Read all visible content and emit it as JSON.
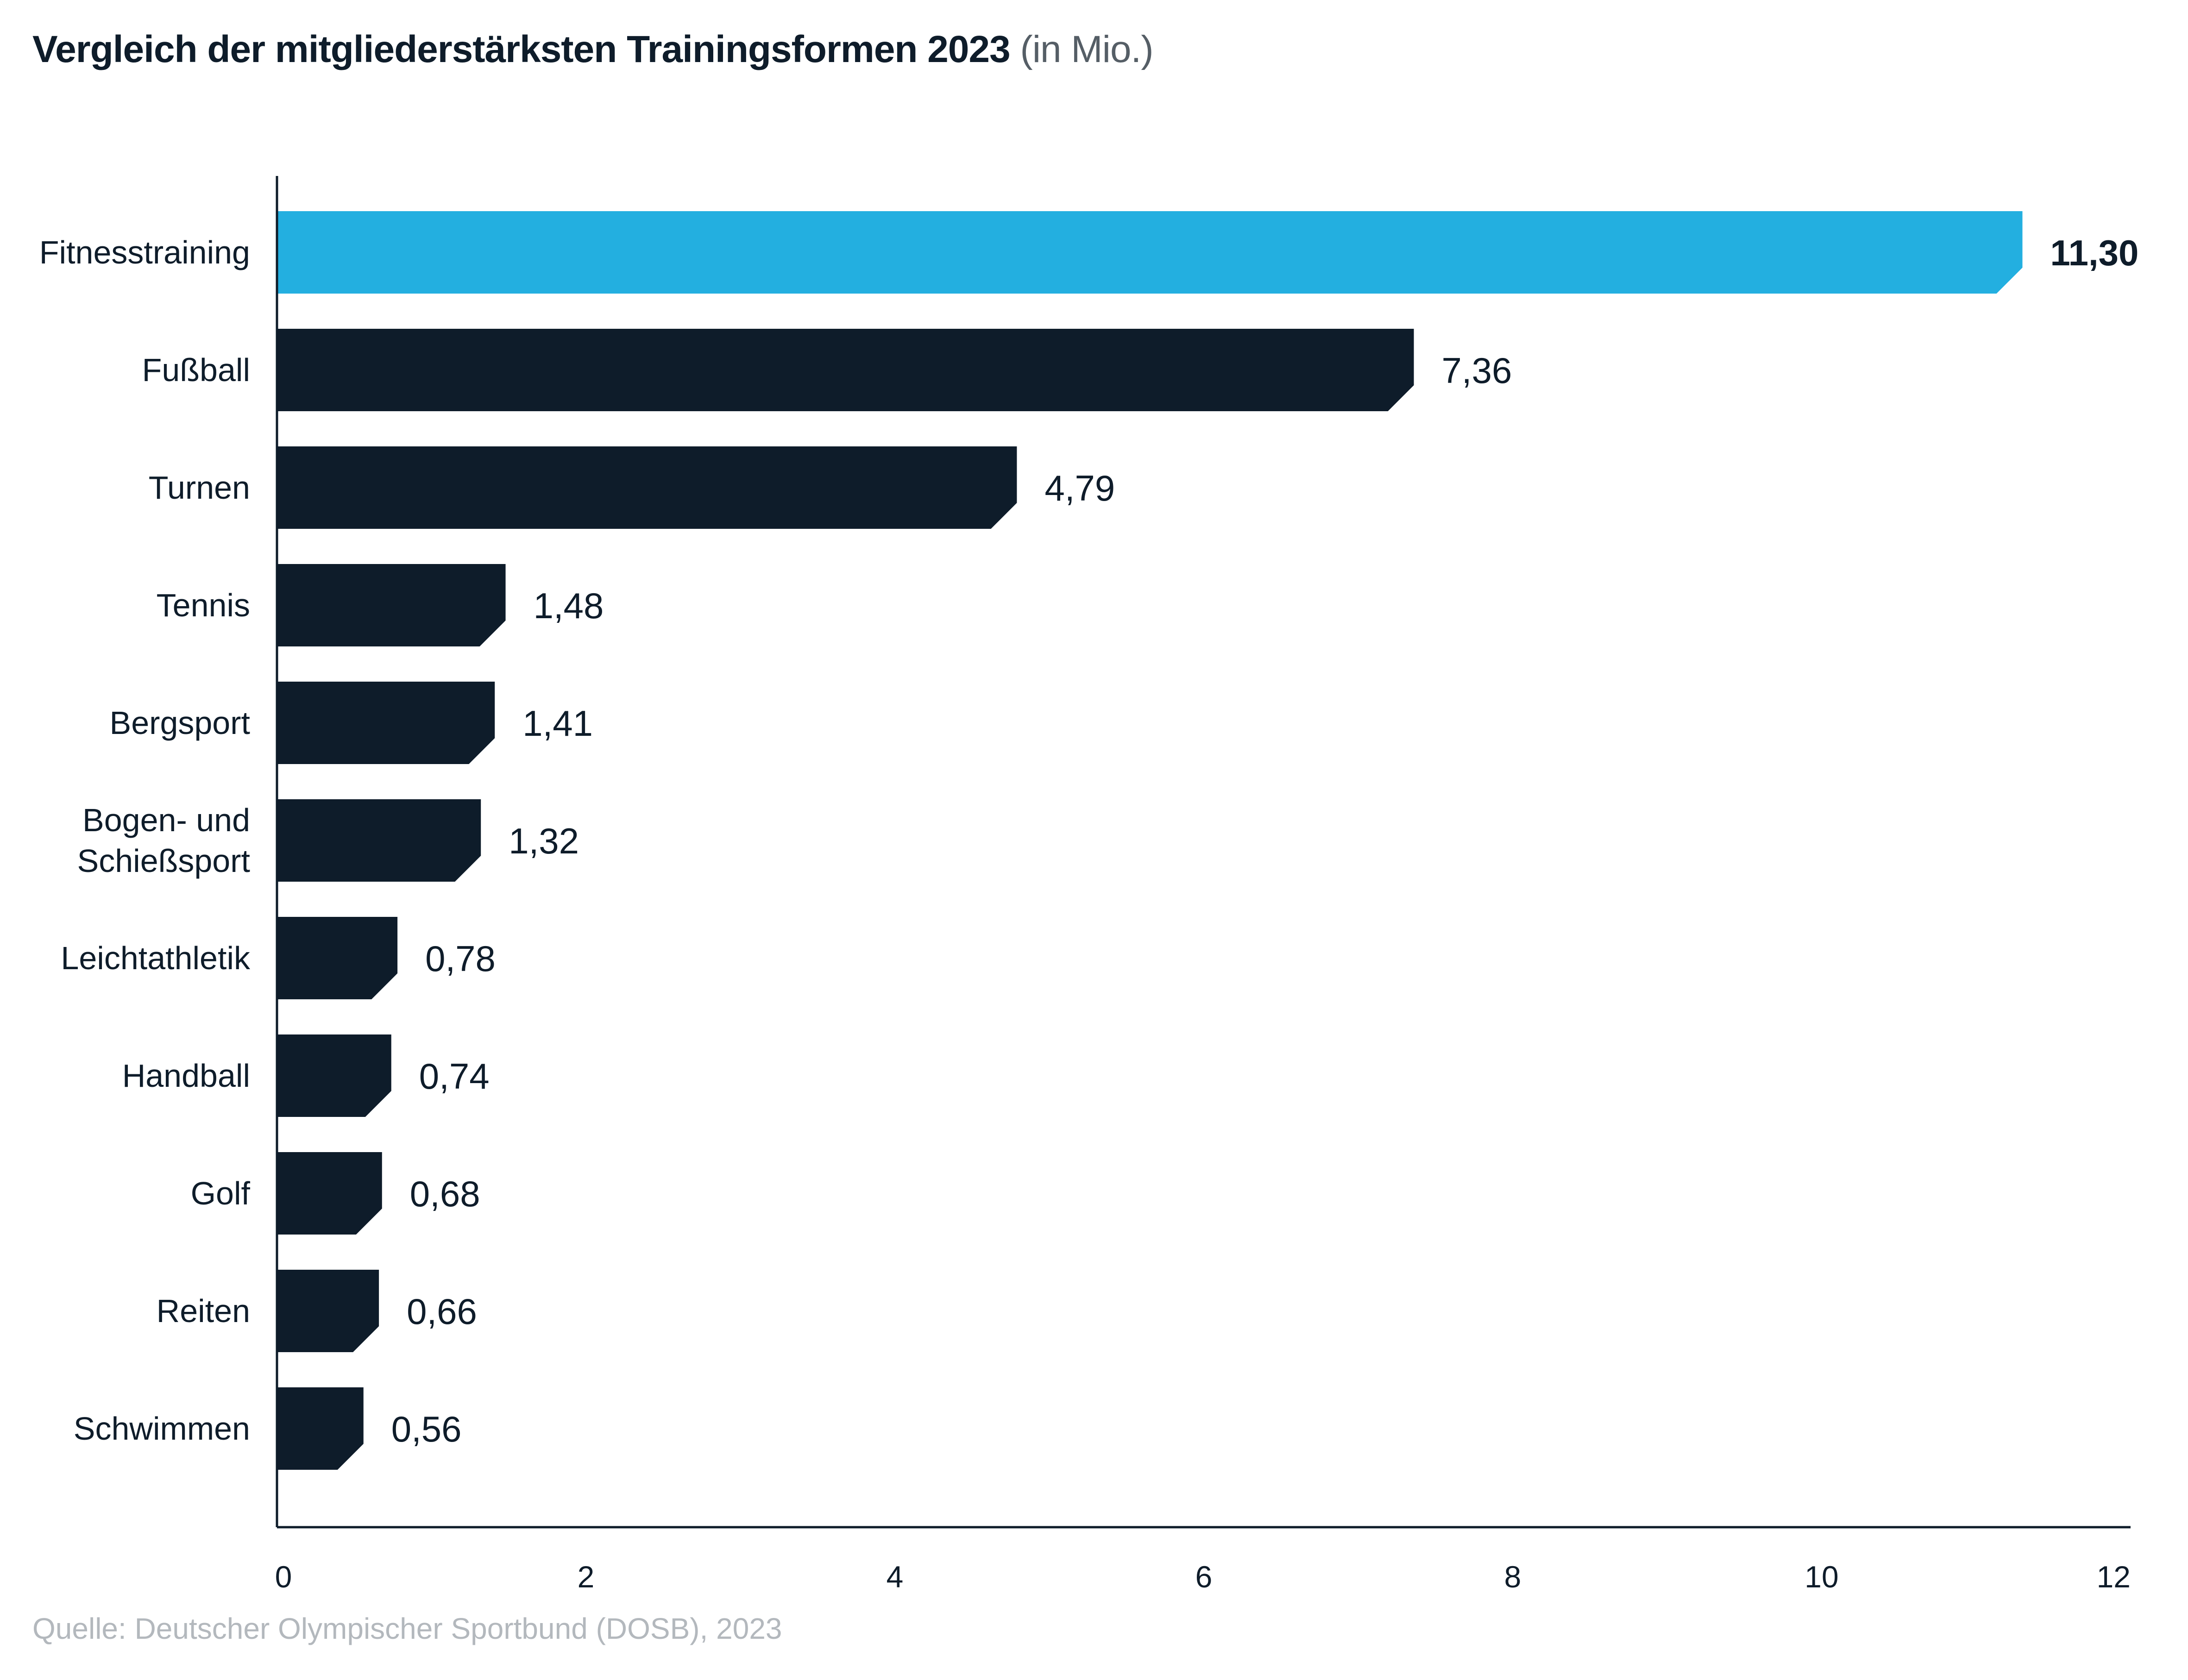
{
  "chart_data": {
    "type": "bar",
    "orientation": "horizontal",
    "title": "Vergleich der mitgliederstärksten Trainingsformen 2023",
    "unit": "(in Mio.)",
    "categories": [
      "Fitnesstraining",
      "Fußball",
      "Turnen",
      "Tennis",
      "Bergsport",
      "Bogen- und Schießsport",
      "Leichtathletik",
      "Handball",
      "Golf",
      "Reiten",
      "Schwimmen"
    ],
    "category_lines": [
      [
        "Fitnesstraining"
      ],
      [
        "Fußball"
      ],
      [
        "Turnen"
      ],
      [
        "Tennis"
      ],
      [
        "Bergsport"
      ],
      [
        "Bogen- und",
        "Schießsport"
      ],
      [
        "Leichtathletik"
      ],
      [
        "Handball"
      ],
      [
        "Golf"
      ],
      [
        "Reiten"
      ],
      [
        "Schwimmen"
      ]
    ],
    "values": [
      11.3,
      7.36,
      4.79,
      1.48,
      1.41,
      1.32,
      0.78,
      0.74,
      0.68,
      0.66,
      0.56
    ],
    "value_labels": [
      "11,30",
      "7,36",
      "4,79",
      "1,48",
      "1,41",
      "1,32",
      "0,78",
      "0,74",
      "0,68",
      "0,66",
      "0,56"
    ],
    "highlight_index": 0,
    "xlim": [
      0,
      12
    ],
    "xticks": [
      0,
      2,
      4,
      6,
      8,
      10,
      12
    ],
    "xtick_labels": [
      "0",
      "2",
      "4",
      "6",
      "8",
      "10",
      "12"
    ],
    "xlabel": "",
    "ylabel": "",
    "grid": false,
    "legend": "none",
    "colors": {
      "highlight": "#23afe0",
      "bar": "#0e1c2a",
      "axis": "#0e1c2a"
    }
  },
  "source": "Quelle: Deutscher Olympischer Sportbund (DOSB), 2023"
}
